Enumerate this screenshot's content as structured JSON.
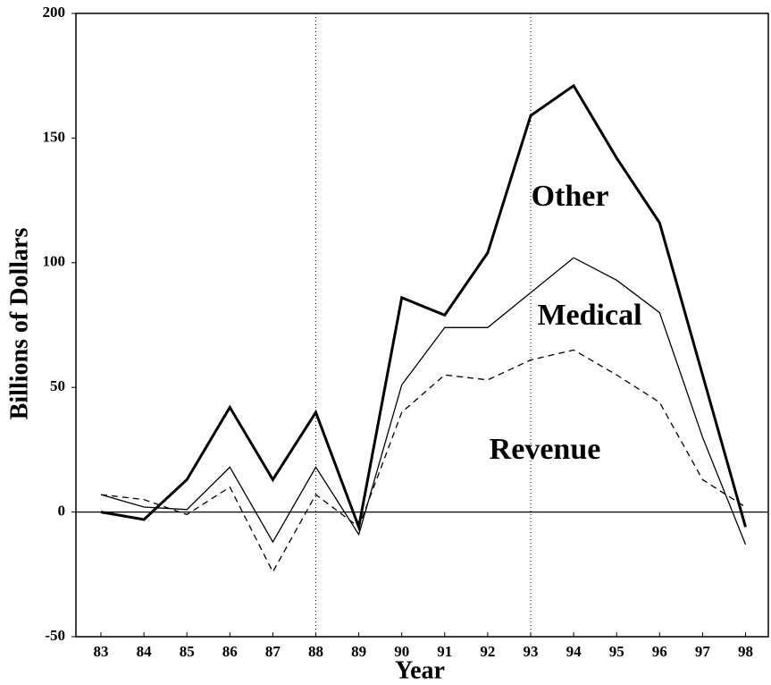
{
  "chart_data": {
    "type": "line",
    "xlabel": "Year",
    "ylabel": "Billions of Dollars",
    "categories": [
      "83",
      "84",
      "85",
      "86",
      "87",
      "88",
      "89",
      "90",
      "91",
      "92",
      "93",
      "94",
      "95",
      "96",
      "97",
      "98"
    ],
    "series": [
      {
        "name": "Other",
        "color": "#000000",
        "style": "thick",
        "values": [
          0,
          -3,
          13,
          42,
          13,
          40,
          -6,
          86,
          79,
          104,
          159,
          171,
          142,
          116,
          55,
          -6
        ]
      },
      {
        "name": "Medical",
        "color": "#000000",
        "style": "thin",
        "values": [
          7,
          2,
          1,
          18,
          -12,
          18,
          -9,
          51,
          74,
          74,
          88,
          102,
          93,
          80,
          30,
          -13
        ]
      },
      {
        "name": "Revenue",
        "color": "#000000",
        "style": "dashed",
        "values": [
          7,
          5,
          -1,
          10,
          -24,
          7,
          -6,
          40,
          55,
          53,
          61,
          65,
          55,
          44,
          13,
          2
        ]
      }
    ],
    "ylim": [
      -50,
      200
    ],
    "yticks": [
      -50,
      0,
      50,
      100,
      150,
      200
    ],
    "vlines": [
      "88",
      "93"
    ]
  }
}
